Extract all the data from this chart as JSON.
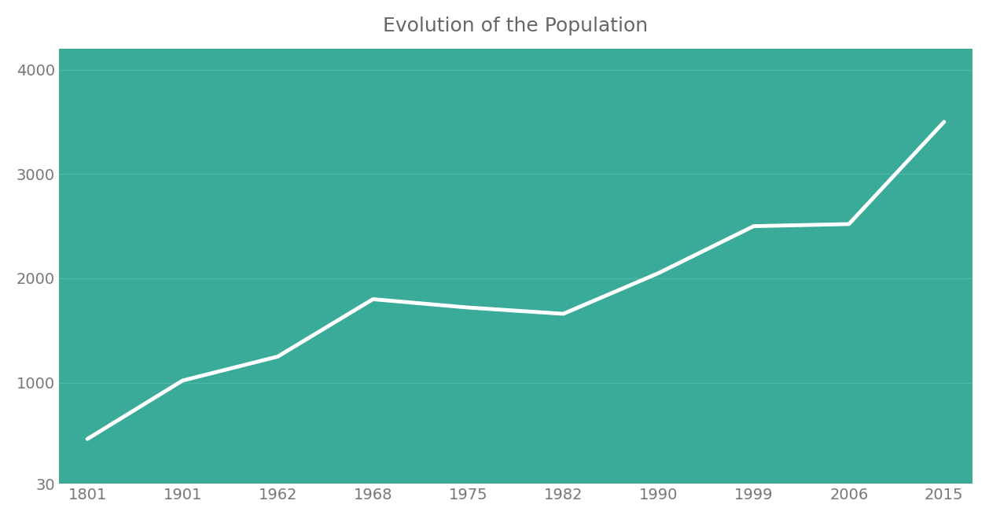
{
  "title": "Evolution of the Population",
  "title_fontsize": 18,
  "title_color": "#666666",
  "background_color": "#3aaa99",
  "fig_background_color": "#ffffff",
  "line_color": "#ffffff",
  "line_width": 3.5,
  "x_indices": [
    0,
    1,
    2,
    3,
    4,
    5,
    6,
    7,
    8,
    9
  ],
  "y_values": [
    460,
    1020,
    1250,
    1800,
    1720,
    1660,
    2050,
    2500,
    2520,
    3500
  ],
  "yticks": [
    30,
    1000,
    2000,
    3000,
    4000
  ],
  "ylim": [
    30,
    4200
  ],
  "xlim": [
    -0.3,
    9.3
  ],
  "xtick_labels": [
    "1801",
    "1901",
    "1962",
    "1968",
    "1975",
    "1982",
    "1990",
    "1999",
    "2006",
    "2015"
  ],
  "grid_color": "#5bbfaf",
  "grid_alpha": 0.7,
  "grid_linewidth": 0.9,
  "tick_color": "#777777",
  "tick_fontsize": 14
}
